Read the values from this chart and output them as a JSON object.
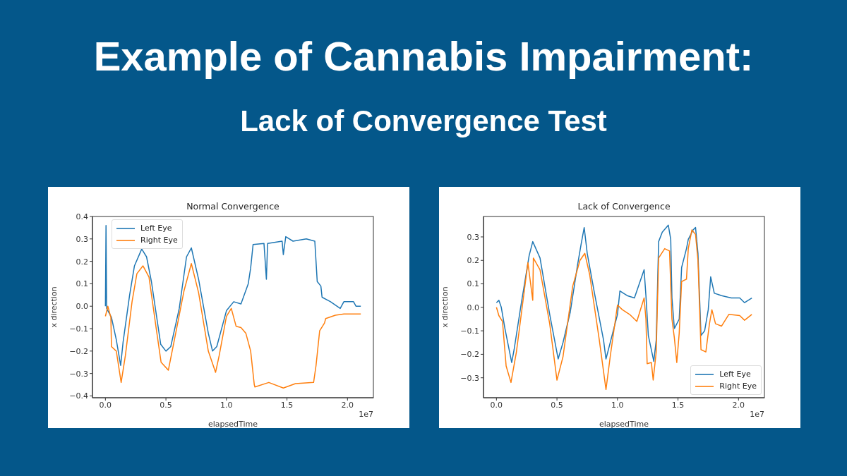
{
  "chart_data": [
    {
      "type": "other",
      "title": "Example of Cannabis Impairment:",
      "subtitle": "Lack of Convergence Test"
    },
    {
      "type": "line",
      "title": "Normal Convergence",
      "xlabel": "elapsedTime",
      "ylabel": "x direction",
      "annotations": [
        "1e7"
      ],
      "xlim": [
        -0.107,
        2.214
      ],
      "xticks": [
        {
          "value": 0,
          "label": "0.0"
        },
        {
          "value": 0.5,
          "label": "0.5"
        },
        {
          "value": 1,
          "label": "1.0"
        },
        {
          "value": 1.5,
          "label": "1.5"
        },
        {
          "value": 2,
          "label": "2.0"
        }
      ],
      "ylim": [
        -0.408,
        0.4
      ],
      "yticks": [
        {
          "value": -0.4,
          "label": "−0.4"
        },
        {
          "value": -0.3,
          "label": "−0.3"
        },
        {
          "value": -0.2,
          "label": "−0.2"
        },
        {
          "value": -0.1,
          "label": "−0.1"
        },
        {
          "value": 0,
          "label": "0.0"
        },
        0.1,
        0.2,
        0.3,
        0.4
      ],
      "grid": false,
      "legend": "top left",
      "marker": "none",
      "line_style": "solid",
      "series": [
        {
          "name": "Left Eye",
          "color": "#1f77b4",
          "x": [
            0,
            0.005,
            0.01,
            0.05,
            0.09,
            0.126,
            0.146,
            0.2,
            0.24,
            0.3,
            0.34,
            0.38,
            0.457,
            0.5,
            0.54,
            0.61,
            0.67,
            0.71,
            0.77,
            0.85,
            0.885,
            0.92,
            1.0,
            1.06,
            1.12,
            1.18,
            1.2,
            1.22,
            1.31,
            1.33,
            1.34,
            1.46,
            1.47,
            1.49,
            1.55,
            1.66,
            1.73,
            1.75,
            1.78,
            1.79,
            1.86,
            1.94,
            1.97,
            2.05,
            2.07,
            2.11
          ],
          "values": [
            0,
            0.36,
            -0.01,
            -0.05,
            -0.15,
            -0.264,
            -0.16,
            0.05,
            0.18,
            0.255,
            0.22,
            0.11,
            -0.17,
            -0.2,
            -0.18,
            -0.01,
            0.22,
            0.26,
            0.12,
            -0.12,
            -0.2,
            -0.18,
            -0.02,
            0.02,
            0.01,
            0.1,
            0.17,
            0.275,
            0.28,
            0.12,
            0.28,
            0.29,
            0.23,
            0.31,
            0.29,
            0.3,
            0.29,
            0.11,
            0.09,
            0.04,
            0.02,
            -0.01,
            0.02,
            0.02,
            0,
            0
          ]
        },
        {
          "name": "Right Eye",
          "color": "#ff7f0e",
          "x": [
            0,
            0.02,
            0.045,
            0.05,
            0.09,
            0.13,
            0.165,
            0.22,
            0.26,
            0.31,
            0.36,
            0.42,
            0.46,
            0.52,
            0.57,
            0.65,
            0.71,
            0.77,
            0.85,
            0.91,
            0.94,
            1.0,
            1.04,
            1.08,
            1.12,
            1.16,
            1.2,
            1.23,
            1.235,
            1.35,
            1.47,
            1.57,
            1.72,
            1.74,
            1.77,
            1.81,
            1.82,
            1.9,
            1.97,
            2.11
          ],
          "values": [
            -0.045,
            0,
            -0.05,
            -0.18,
            -0.2,
            -0.34,
            -0.22,
            0.02,
            0.145,
            0.18,
            0.13,
            -0.1,
            -0.25,
            -0.285,
            -0.15,
            0.07,
            0.19,
            0.06,
            -0.2,
            -0.295,
            -0.22,
            -0.045,
            -0.01,
            -0.09,
            -0.095,
            -0.12,
            -0.2,
            -0.35,
            -0.36,
            -0.34,
            -0.365,
            -0.345,
            -0.34,
            -0.265,
            -0.11,
            -0.075,
            -0.055,
            -0.04,
            -0.035,
            -0.035
          ]
        }
      ]
    },
    {
      "type": "line",
      "title": "Lack of Convergence",
      "xlabel": "elapsedTime",
      "ylabel": "x direction",
      "annotations": [
        "1e7"
      ],
      "xlim": [
        -0.107,
        2.214
      ],
      "xticks": [
        {
          "value": 0,
          "label": "0.0"
        },
        {
          "value": 0.5,
          "label": "0.5"
        },
        {
          "value": 1,
          "label": "1.0"
        },
        {
          "value": 1.5,
          "label": "1.5"
        },
        {
          "value": 2,
          "label": "2.0"
        }
      ],
      "ylim": [
        -0.385,
        0.387
      ],
      "yticks": [
        {
          "value": -0.3,
          "label": "−0.3"
        },
        {
          "value": -0.2,
          "label": "−0.2"
        },
        {
          "value": -0.1,
          "label": "−0.1"
        },
        {
          "value": 0,
          "label": "0.0"
        },
        0.1,
        0.2,
        0.3
      ],
      "grid": false,
      "legend": "bottom right",
      "marker": "none",
      "line_style": "solid",
      "series": [
        {
          "name": "Left Eye",
          "color": "#1f77b4",
          "x": [
            0,
            0.02,
            0.04,
            0.07,
            0.126,
            0.146,
            0.2,
            0.27,
            0.3,
            0.36,
            0.44,
            0.51,
            0.55,
            0.61,
            0.67,
            0.7,
            0.725,
            0.75,
            0.81,
            0.885,
            0.905,
            0.96,
            1.0,
            1.02,
            1.08,
            1.14,
            1.18,
            1.22,
            1.235,
            1.255,
            1.3,
            1.32,
            1.34,
            1.37,
            1.42,
            1.44,
            1.45,
            1.47,
            1.51,
            1.53,
            1.57,
            1.585,
            1.625,
            1.645,
            1.665,
            1.69,
            1.72,
            1.75,
            1.77,
            1.8,
            1.86,
            1.94,
            2.01,
            2.05,
            2.11
          ],
          "values": [
            0.02,
            0.03,
            0,
            -0.09,
            -0.235,
            -0.18,
            0,
            0.22,
            0.28,
            0.21,
            -0.03,
            -0.22,
            -0.15,
            -0.02,
            0.18,
            0.27,
            0.34,
            0.23,
            0.06,
            -0.14,
            -0.22,
            -0.11,
            -0.03,
            0.07,
            0.05,
            0.04,
            0.1,
            0.16,
            0.05,
            -0.12,
            -0.23,
            -0.14,
            0.28,
            0.32,
            0.35,
            0.29,
            0.04,
            -0.09,
            -0.05,
            0.17,
            0.25,
            0.29,
            0.33,
            0.34,
            0.23,
            -0.12,
            -0.1,
            -0.01,
            0.13,
            0.06,
            0.05,
            0.04,
            0.04,
            0.02,
            0.04
          ]
        },
        {
          "name": "Right Eye",
          "color": "#ff7f0e",
          "x": [
            0,
            0.02,
            0.05,
            0.08,
            0.12,
            0.165,
            0.2,
            0.26,
            0.3,
            0.305,
            0.36,
            0.44,
            0.5,
            0.55,
            0.63,
            0.69,
            0.73,
            0.77,
            0.85,
            0.905,
            0.94,
            1.0,
            1.04,
            1.1,
            1.16,
            1.22,
            1.235,
            1.245,
            1.28,
            1.295,
            1.32,
            1.34,
            1.39,
            1.43,
            1.45,
            1.47,
            1.49,
            1.51,
            1.53,
            1.57,
            1.585,
            1.615,
            1.645,
            1.665,
            1.69,
            1.73,
            1.76,
            1.78,
            1.81,
            1.86,
            1.92,
            2.01,
            2.05,
            2.11
          ],
          "values": [
            0,
            -0.035,
            -0.06,
            -0.25,
            -0.32,
            -0.19,
            -0.05,
            0.19,
            0.03,
            0.21,
            0.16,
            -0.07,
            -0.31,
            -0.21,
            0.09,
            0.2,
            0.23,
            0.14,
            -0.14,
            -0.35,
            -0.21,
            0.01,
            -0.01,
            -0.03,
            -0.06,
            0.04,
            -0.05,
            -0.24,
            -0.235,
            -0.31,
            -0.19,
            0.21,
            0.25,
            0.24,
            -0.05,
            -0.13,
            -0.235,
            -0.11,
            0.11,
            0.12,
            0.25,
            0.33,
            0.31,
            0.2,
            -0.18,
            -0.19,
            -0.07,
            -0.01,
            -0.07,
            -0.08,
            -0.03,
            -0.035,
            -0.055,
            -0.03
          ]
        }
      ]
    }
  ]
}
